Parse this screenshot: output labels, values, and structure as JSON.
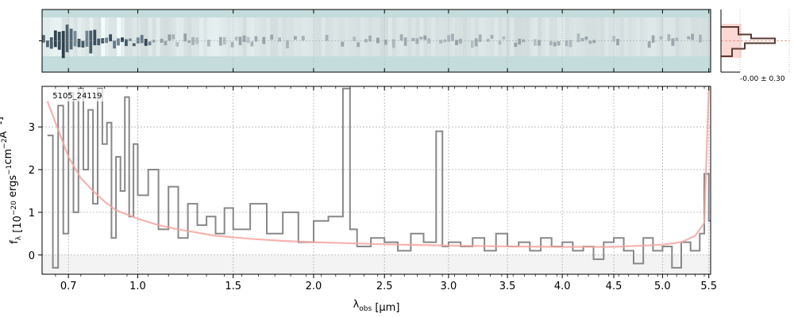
{
  "chart_data": [
    {
      "type": "heatmap",
      "panel": "2d-spectrum",
      "xlim": [
        0.6,
        5.52
      ],
      "trace_row": 0.5,
      "cmap": [
        "#c4dcdc",
        "#ffffff",
        "#0b1a2a"
      ]
    },
    {
      "type": "line",
      "panel": "profile",
      "xlabel": "-0.00 ± 0.30",
      "series": [
        {
          "name": "profile",
          "color": "#5a3a32"
        },
        {
          "name": "model",
          "color": "#f4a99e"
        }
      ]
    },
    {
      "type": "line",
      "panel": "1d-spectrum",
      "id_label": "5105_24119",
      "xlabel": "λobs [μm]",
      "xlabel_parts": [
        "λ",
        "obs",
        " [",
        "μ",
        "m]"
      ],
      "ylabel": "fλ [10⁻²⁰ ergs⁻¹cm⁻²Å⁻¹]",
      "ylabel_parts": [
        "f",
        "λ",
        " [10",
        "−20",
        " ergs",
        "−1",
        "cm",
        "−2",
        "Å",
        "−1",
        "]"
      ],
      "xlim": [
        0.6,
        5.52
      ],
      "ylim": [
        -0.45,
        3.95
      ],
      "x_axis_scale": "sqrt-like (wavelength-stretched)",
      "grid": true,
      "x_tick_labels": [
        "0.7",
        "1.0",
        "1.5",
        "2.0",
        "2.5",
        "3.0",
        "3.5",
        "4.0",
        "4.5",
        "5.0",
        "5.5"
      ],
      "x_ticks": [
        0.7,
        1.0,
        1.5,
        2.0,
        2.5,
        3.0,
        3.5,
        4.0,
        4.5,
        5.0,
        5.5
      ],
      "y_tick_labels": [
        "0",
        "1",
        "2",
        "3"
      ],
      "y_ticks": [
        0,
        1,
        2,
        3
      ],
      "colors": {
        "data": "#888888",
        "model": "#f4a6a0",
        "zero_band": "#e9e9e9"
      },
      "series": [
        {
          "name": "data",
          "x": [
            0.62,
            0.64,
            0.66,
            0.68,
            0.7,
            0.72,
            0.74,
            0.76,
            0.78,
            0.8,
            0.82,
            0.84,
            0.86,
            0.88,
            0.9,
            0.92,
            0.94,
            0.96,
            0.98,
            1.0,
            1.05,
            1.1,
            1.15,
            1.2,
            1.25,
            1.3,
            1.35,
            1.4,
            1.45,
            1.5,
            1.6,
            1.7,
            1.8,
            1.9,
            2.0,
            2.1,
            2.2,
            2.25,
            2.3,
            2.4,
            2.5,
            2.6,
            2.7,
            2.8,
            2.9,
            2.95,
            3.0,
            3.1,
            3.2,
            3.3,
            3.4,
            3.5,
            3.6,
            3.7,
            3.8,
            3.9,
            4.0,
            4.1,
            4.2,
            4.3,
            4.4,
            4.5,
            4.6,
            4.7,
            4.8,
            4.9,
            5.0,
            5.1,
            5.2,
            5.3,
            5.4,
            5.45,
            5.5
          ],
          "y": [
            2.8,
            -0.3,
            3.5,
            0.5,
            3.8,
            1.0,
            3.9,
            2.0,
            3.4,
            1.2,
            3.9,
            2.6,
            3.1,
            0.4,
            2.3,
            1.5,
            3.7,
            0.9,
            2.6,
            1.4,
            2.0,
            0.6,
            1.6,
            0.4,
            1.2,
            0.7,
            0.9,
            0.5,
            1.1,
            0.6,
            1.2,
            0.5,
            1.0,
            0.3,
            0.8,
            0.9,
            3.9,
            0.6,
            0.2,
            0.4,
            0.3,
            0.1,
            0.5,
            0.3,
            2.9,
            0.2,
            0.3,
            0.2,
            0.4,
            0.1,
            0.5,
            0.2,
            0.3,
            0.1,
            0.4,
            0.2,
            0.3,
            0.1,
            0.2,
            -0.1,
            0.3,
            0.4,
            0.1,
            -0.2,
            0.4,
            0.1,
            0.2,
            -0.3,
            0.3,
            0.1,
            0.5,
            1.9,
            0.8
          ]
        },
        {
          "name": "model",
          "x": [
            0.62,
            0.65,
            0.7,
            0.75,
            0.8,
            0.85,
            0.9,
            1.0,
            1.1,
            1.2,
            1.4,
            1.6,
            1.8,
            2.0,
            2.2,
            2.5,
            3.0,
            3.5,
            4.0,
            4.5,
            5.0,
            5.2,
            5.35,
            5.45,
            5.5
          ],
          "y": [
            3.6,
            3.1,
            2.3,
            1.8,
            1.5,
            1.25,
            1.05,
            0.85,
            0.7,
            0.6,
            0.45,
            0.38,
            0.33,
            0.3,
            0.28,
            0.25,
            0.22,
            0.2,
            0.19,
            0.19,
            0.24,
            0.3,
            0.45,
            0.75,
            3.9
          ]
        }
      ]
    }
  ]
}
